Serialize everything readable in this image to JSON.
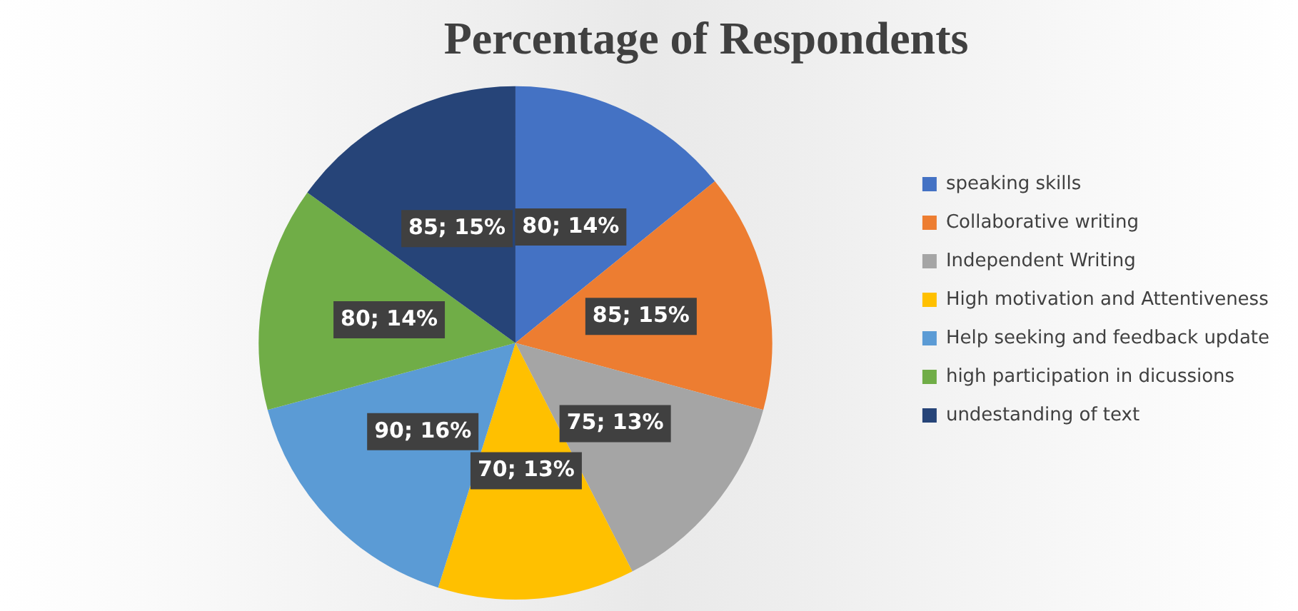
{
  "chart_data": {
    "type": "pie",
    "title": "Percentage of Respondents",
    "categories": [
      "speaking skills",
      "Collaborative writing",
      "Independent Writing",
      "High motivation and Attentiveness",
      "Help seeking and feedback update",
      "high participation in dicussions",
      "undestanding of text"
    ],
    "values": [
      80,
      85,
      75,
      70,
      90,
      80,
      85
    ],
    "colors": [
      "#4472c4",
      "#ed7d31",
      "#a5a5a5",
      "#ffc000",
      "#5b9bd5",
      "#70ad47",
      "#264478"
    ],
    "value_labels": [
      "80; 14%",
      "85; 15%",
      "75; 13%",
      "70; 13%",
      "90; 16%",
      "80; 14%",
      "85; 15%"
    ],
    "legend": "right"
  }
}
